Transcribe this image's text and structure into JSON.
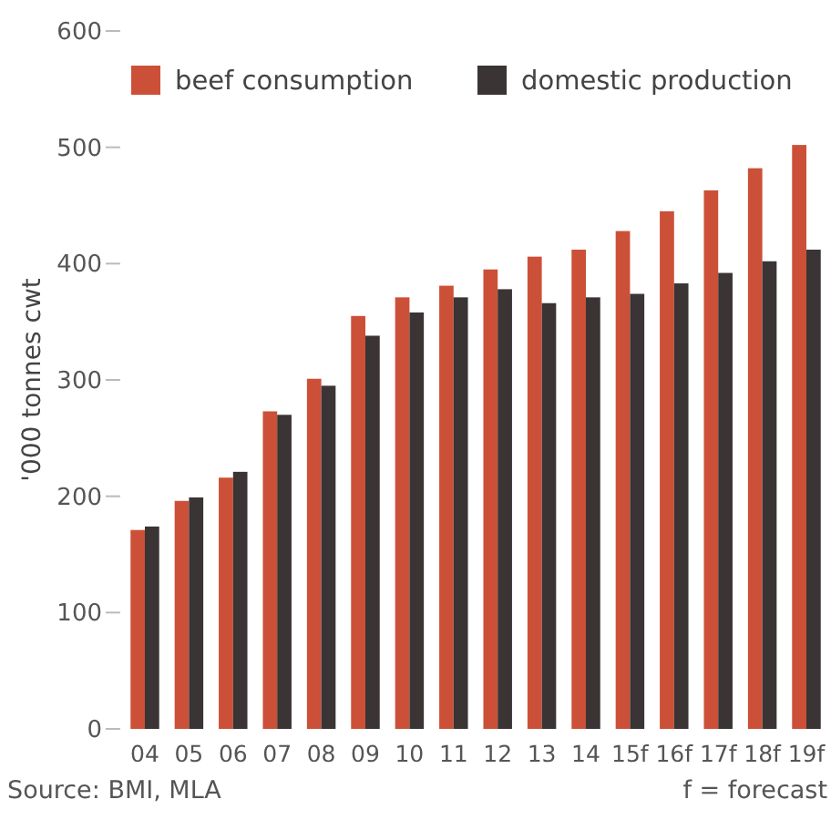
{
  "chart_data": {
    "type": "bar",
    "ylabel": "'000 tonnes cwt",
    "categories": [
      "04",
      "05",
      "06",
      "07",
      "08",
      "09",
      "10",
      "11",
      "12",
      "13",
      "14",
      "15f",
      "16f",
      "17f",
      "18f",
      "19f"
    ],
    "series": [
      {
        "name": "beef consumption",
        "color": "#cc5038",
        "values": [
          171,
          196,
          216,
          273,
          301,
          355,
          371,
          381,
          395,
          406,
          412,
          428,
          445,
          463,
          482,
          502
        ]
      },
      {
        "name": "domestic production",
        "color": "#3a3434",
        "values": [
          174,
          199,
          221,
          270,
          295,
          338,
          358,
          371,
          378,
          366,
          371,
          374,
          383,
          392,
          402,
          412
        ]
      }
    ],
    "ylim": [
      0,
      600
    ],
    "yticks": [
      0,
      100,
      200,
      300,
      400,
      500,
      600
    ],
    "grid": false,
    "legend": "top right",
    "annotations": [
      "Source: BMI, MLA",
      "f = forecast"
    ]
  }
}
